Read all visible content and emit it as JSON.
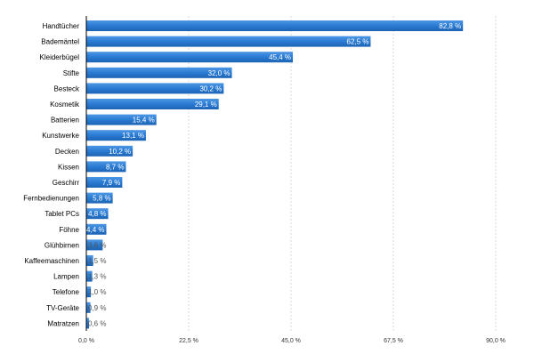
{
  "chart_data": {
    "type": "bar",
    "orientation": "horizontal",
    "categories": [
      "Handtücher",
      "Bademäntel",
      "Kleiderbügel",
      "Stifte",
      "Besteck",
      "Kosmetik",
      "Batterien",
      "Kunstwerke",
      "Decken",
      "Kissen",
      "Geschirr",
      "Fernbedienungen",
      "Tablet PCs",
      "Föhne",
      "Glühbirnen",
      "Kaffeemaschinen",
      "Lampen",
      "Telefone",
      "TV-Geräte",
      "Matratzen"
    ],
    "values": [
      82.8,
      62.5,
      45.4,
      32.0,
      30.2,
      29.1,
      15.4,
      13.1,
      10.2,
      8.7,
      7.9,
      5.8,
      4.8,
      4.4,
      3.6,
      1.5,
      1.3,
      1.0,
      0.9,
      0.6
    ],
    "value_labels": [
      "82,8 %",
      "62,5 %",
      "45,4 %",
      "32,0 %",
      "30,2 %",
      "29,1 %",
      "15,4 %",
      "13,1 %",
      "10,2 %",
      "8,7 %",
      "7,9 %",
      "5,8 %",
      "4,8 %",
      "4,4 %",
      "3,6 %",
      "1,5 %",
      "1,3 %",
      "1,0 %",
      "0,9 %",
      "0,6 %"
    ],
    "xlim": [
      0,
      90
    ],
    "xticks": [
      0,
      22.5,
      45,
      67.5,
      90
    ],
    "xtick_labels": [
      "0,0 %",
      "22,5 %",
      "45,0 %",
      "67,5 %",
      "90,0 %"
    ],
    "grid": true,
    "title": "",
    "xlabel": "",
    "ylabel": "",
    "colors": {
      "bar": "#2a7bd3",
      "bar_light": "#4d97e4",
      "bar_dark": "#1b63b5",
      "grid": "#d9d9d9",
      "axis": "#000000",
      "label_inside": "#ffffff",
      "label_outside": "#555555"
    }
  }
}
